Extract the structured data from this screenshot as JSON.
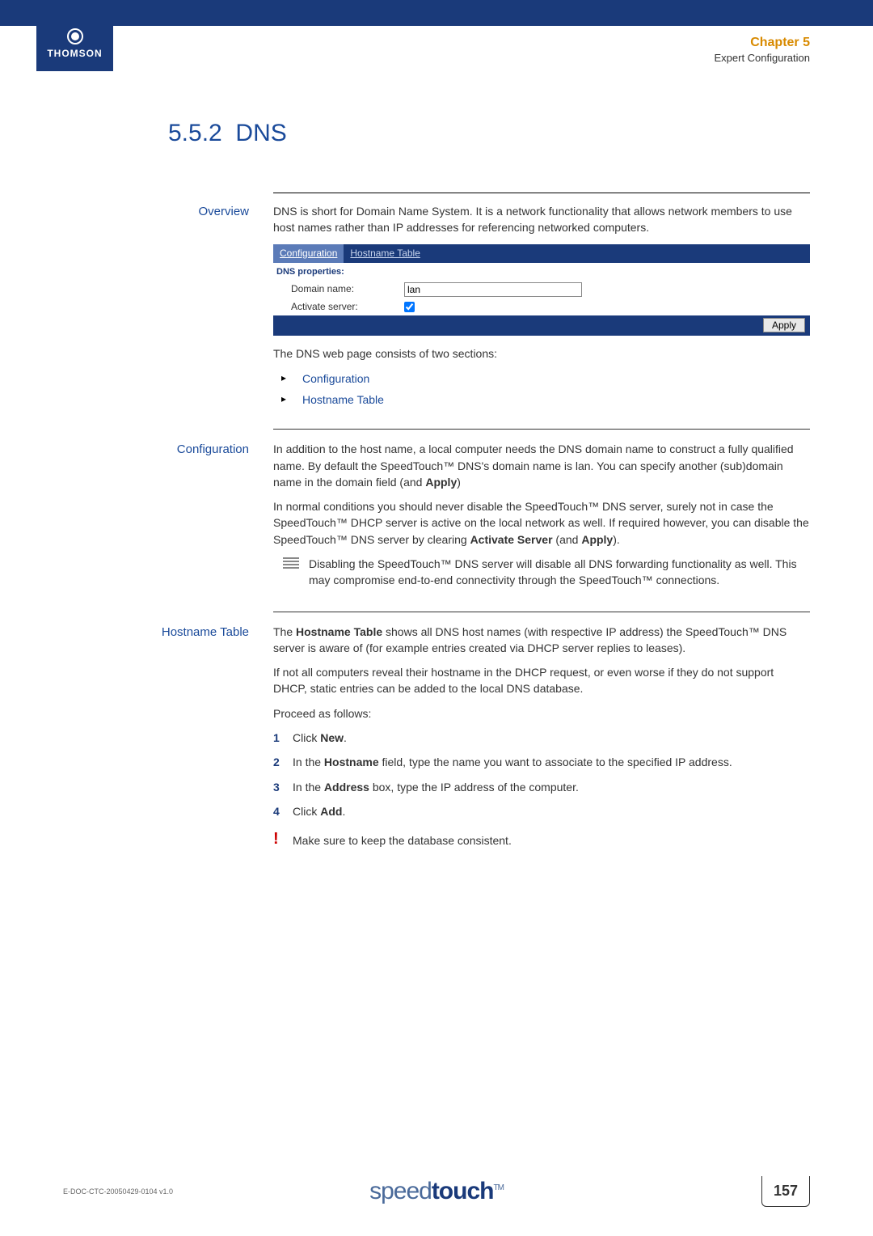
{
  "header": {
    "logo_text": "THOMSON",
    "chapter_label": "Chapter 5",
    "chapter_subtitle": "Expert Configuration"
  },
  "section": {
    "number": "5.5.2",
    "title": "DNS"
  },
  "overview": {
    "label": "Overview",
    "intro": "DNS is short for Domain Name System. It is a network functionality that allows network members to use host names rather than IP addresses for referencing networked computers.",
    "ui": {
      "tab_active": "Configuration",
      "tab_inactive": "Hostname Table",
      "props_title": "DNS properties:",
      "domain_label": "Domain name:",
      "domain_value": "lan",
      "activate_label": "Activate server:",
      "apply_label": "Apply"
    },
    "after": "The DNS web page consists of two sections:",
    "bullets": {
      "0": "Configuration",
      "1": "Hostname Table"
    }
  },
  "config": {
    "label": "Configuration",
    "p1_a": "In addition to the host name, a local computer needs the DNS domain name to construct a fully qualified name. By default the SpeedTouch™ DNS's domain name is lan. You can specify another (sub)domain name in the domain field (and ",
    "p1_b": "Apply",
    "p1_c": ")",
    "p2_a": "In normal conditions you should never disable the SpeedTouch™ DNS server, surely not in case the SpeedTouch™ DHCP server is active on the local network as well. If required however, you can disable the SpeedTouch™ DNS server by clearing ",
    "p2_b": "Activate Server",
    "p2_c": " (and ",
    "p2_d": "Apply",
    "p2_e": ").",
    "note": "Disabling the SpeedTouch™ DNS server will disable all DNS forwarding functionality as well. This may compromise end-to-end connectivity through the SpeedTouch™ connections."
  },
  "hostname": {
    "label": "Hostname Table",
    "p1_a": "The ",
    "p1_b": "Hostname Table",
    "p1_c": " shows all DNS host names (with respective IP address) the SpeedTouch™ DNS server is aware of (for example entries created via DHCP server replies to leases).",
    "p2": "If not all computers reveal their hostname in the DHCP request, or even worse if they do not support DHCP, static entries can be added to the local DNS database.",
    "p3": "Proceed as follows:",
    "steps": {
      "s1_a": "Click ",
      "s1_b": "New",
      "s1_c": ".",
      "s2_a": "In the ",
      "s2_b": "Hostname",
      "s2_c": " field, type the name you want to associate to the specified IP address.",
      "s3_a": "In the ",
      "s3_b": "Address",
      "s3_c": " box, type the IP address of the computer.",
      "s4_a": "Click ",
      "s4_b": "Add",
      "s4_c": "."
    },
    "warn": "Make sure to keep the database consistent."
  },
  "footer": {
    "doc_id": "E-DOC-CTC-20050429-0104 v1.0",
    "brand_light": "speed",
    "brand_bold": "touch",
    "page_num": "157"
  },
  "colors": {
    "navy": "#1a3a7a",
    "blue_heading": "#1a4a9a",
    "orange": "#d88a00"
  }
}
